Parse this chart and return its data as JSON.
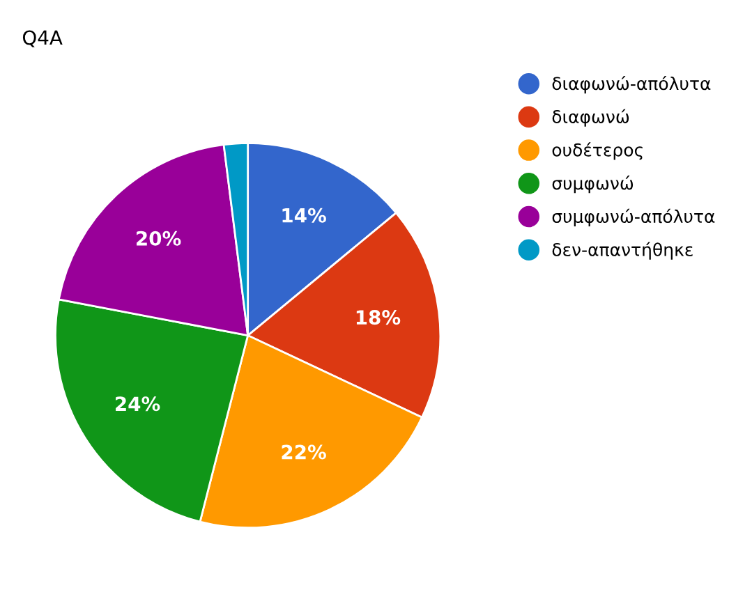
{
  "chart_data": {
    "type": "pie",
    "title": "Q4A",
    "categories": [
      "διαφωνώ-απόλυτα",
      "διαφωνώ",
      "ουδέτερος",
      "συμφωνώ",
      "συμφωνώ-απόλυτα",
      "δεν-απαντήθηκε"
    ],
    "values": [
      14,
      18,
      22,
      24,
      20,
      2
    ],
    "colors": [
      "#3366cc",
      "#dc3912",
      "#ff9900",
      "#109618",
      "#990099",
      "#0099c6"
    ],
    "value_labels": [
      "14%",
      "18%",
      "22%",
      "24%",
      "20%",
      null
    ],
    "legend": "right"
  }
}
